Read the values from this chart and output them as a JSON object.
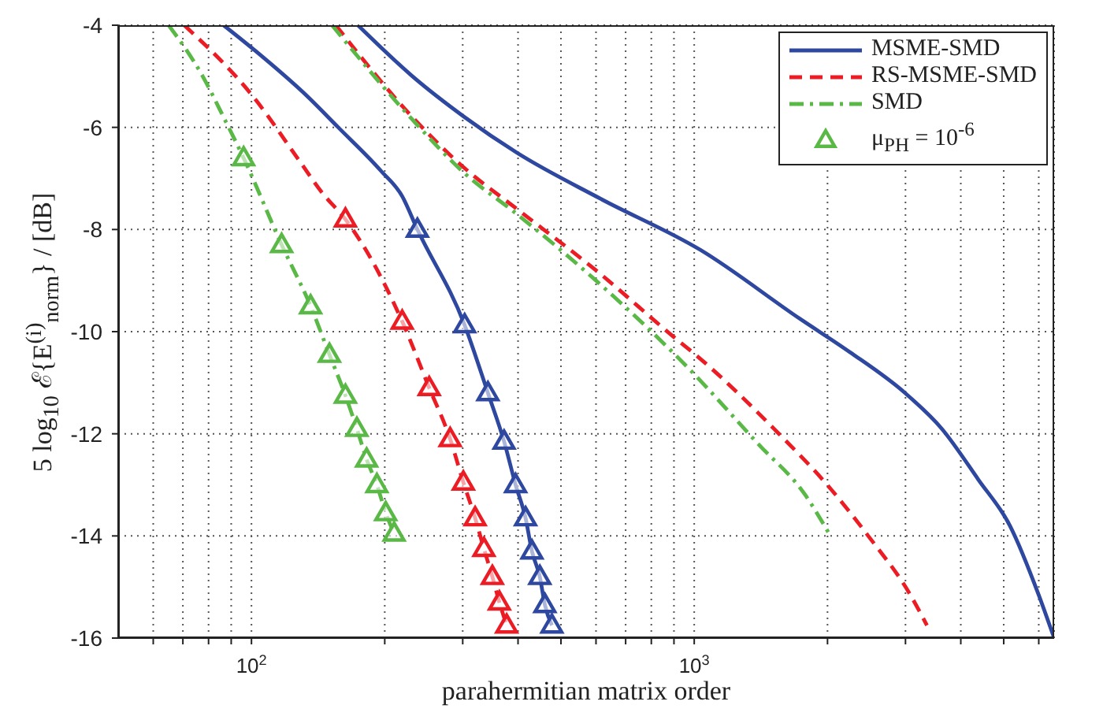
{
  "chart_data": {
    "type": "line",
    "xlabel": "parahermitian matrix order",
    "ylabel": "5 log$_{10}$ ℰ{E$^{(i)}$$_{norm}$} / [dB]",
    "log": "x",
    "grid": true,
    "legend": "top right",
    "xlim": [
      50,
      6500
    ],
    "ylim": [
      -16,
      -4
    ],
    "xticks": [
      {
        "value": 60,
        "label": null
      },
      {
        "value": 70,
        "label": null
      },
      {
        "value": 80,
        "label": null
      },
      {
        "value": 90,
        "label": null
      },
      {
        "value": 100,
        "label": "10$^{2}$"
      },
      {
        "value": 200,
        "label": null
      },
      {
        "value": 300,
        "label": null
      },
      {
        "value": 400,
        "label": null
      },
      {
        "value": 500,
        "label": null
      },
      {
        "value": 600,
        "label": null
      },
      {
        "value": 700,
        "label": null
      },
      {
        "value": 800,
        "label": null
      },
      {
        "value": 900,
        "label": null
      },
      {
        "value": 1000,
        "label": "10$^{3}$"
      },
      {
        "value": 2000,
        "label": null
      },
      {
        "value": 3000,
        "label": null
      },
      {
        "value": 4000,
        "label": null
      },
      {
        "value": 5000,
        "label": null
      },
      {
        "value": 6000,
        "label": null
      }
    ],
    "yticks": [
      -16,
      -14,
      -12,
      -10,
      -8,
      -6,
      -4
    ],
    "series": [
      {
        "name": "MSME-SMD",
        "color": "#2e48a0",
        "line_style": "solid",
        "x": [
          174,
          231,
          303,
          398,
          615,
          1033,
          1734,
          2246,
          2992,
          3623,
          4385,
          5164,
          5995,
          6500
        ],
        "values": [
          -4,
          -5.0,
          -5.8,
          -6.5,
          -7.4,
          -8.4,
          -9.75,
          -10.4,
          -11.2,
          -11.9,
          -12.9,
          -13.8,
          -15.15,
          -16
        ]
      },
      {
        "name": "RS-MSME-SMD",
        "color": "#ec1c24",
        "line_style": "dashed",
        "x": [
          155,
          231,
          303,
          398,
          600,
          927,
          1006,
          1513,
          2043,
          2472,
          3075,
          3354
        ],
        "values": [
          -4,
          -5.8,
          -6.8,
          -7.6,
          -8.8,
          -10.2,
          -10.45,
          -11.9,
          -13.1,
          -14.0,
          -15.15,
          -15.75
        ]
      },
      {
        "name": "SMD",
        "color": "#5ab946",
        "line_style": "dashdot",
        "x": [
          152,
          231,
          303,
          398,
          600,
          979,
          1395,
          1782,
          2015
        ],
        "values": [
          -4,
          -5.85,
          -6.9,
          -7.7,
          -9.0,
          -10.75,
          -12.2,
          -13.2,
          -13.95
        ]
      },
      {
        "color": "#2e48a0",
        "line_style": "solid",
        "x": [
          86.5,
          102,
          134,
          157,
          196,
          219,
          237,
          303,
          342,
          372,
          395,
          416,
          430,
          448,
          460,
          477
        ],
        "values": [
          -4,
          -4.5,
          -5.4,
          -6.0,
          -6.85,
          -7.35,
          -8.0,
          -9.87,
          -11.2,
          -12.15,
          -13.0,
          -13.65,
          -14.3,
          -14.8,
          -15.35,
          -15.75
        ]
      },
      {
        "color": "#ec1c24",
        "line_style": "dashed",
        "x": [
          70.5,
          102,
          127,
          145,
          163,
          219,
          252,
          281,
          301,
          320,
          335,
          350,
          363,
          377
        ],
        "values": [
          -4,
          -5.45,
          -6.6,
          -7.3,
          -7.8,
          -9.8,
          -11.1,
          -12.1,
          -12.95,
          -13.65,
          -14.25,
          -14.8,
          -15.3,
          -15.75
        ]
      },
      {
        "color": "#5ab946",
        "line_style": "dashdot",
        "x": [
          65,
          77.6,
          86.5,
          96,
          117,
          136,
          150,
          163,
          173,
          182,
          192,
          201,
          210
        ],
        "values": [
          -4,
          -5.0,
          -5.8,
          -6.6,
          -8.3,
          -9.5,
          -10.45,
          -11.25,
          -11.9,
          -12.5,
          -13.0,
          -13.55,
          -13.95
        ]
      },
      {
        "type": "scatter",
        "color": "#2e48a0",
        "marker": "triangle",
        "x": [
          237,
          303,
          342,
          372,
          395,
          416,
          430,
          448,
          460,
          477
        ],
        "values": [
          -8.0,
          -9.87,
          -11.2,
          -12.15,
          -13.0,
          -13.65,
          -14.3,
          -14.8,
          -15.35,
          -15.75
        ]
      },
      {
        "type": "scatter",
        "color": "#ec1c24",
        "marker": "triangle",
        "x": [
          163,
          219,
          252,
          281,
          301,
          320,
          335,
          350,
          363,
          377
        ],
        "values": [
          -7.8,
          -9.8,
          -11.1,
          -12.1,
          -12.95,
          -13.65,
          -14.25,
          -14.8,
          -15.3,
          -15.75
        ]
      },
      {
        "name": "μ$_{PH}$ = 10$^{-6}$",
        "type": "scatter",
        "color": "#5ab946",
        "marker": "triangle",
        "x": [
          96,
          117,
          136,
          150,
          163,
          173,
          182,
          192,
          201,
          210
        ],
        "values": [
          -6.6,
          -8.3,
          -9.5,
          -10.45,
          -11.25,
          -11.9,
          -12.5,
          -13.0,
          -13.55,
          -13.95
        ]
      }
    ]
  }
}
